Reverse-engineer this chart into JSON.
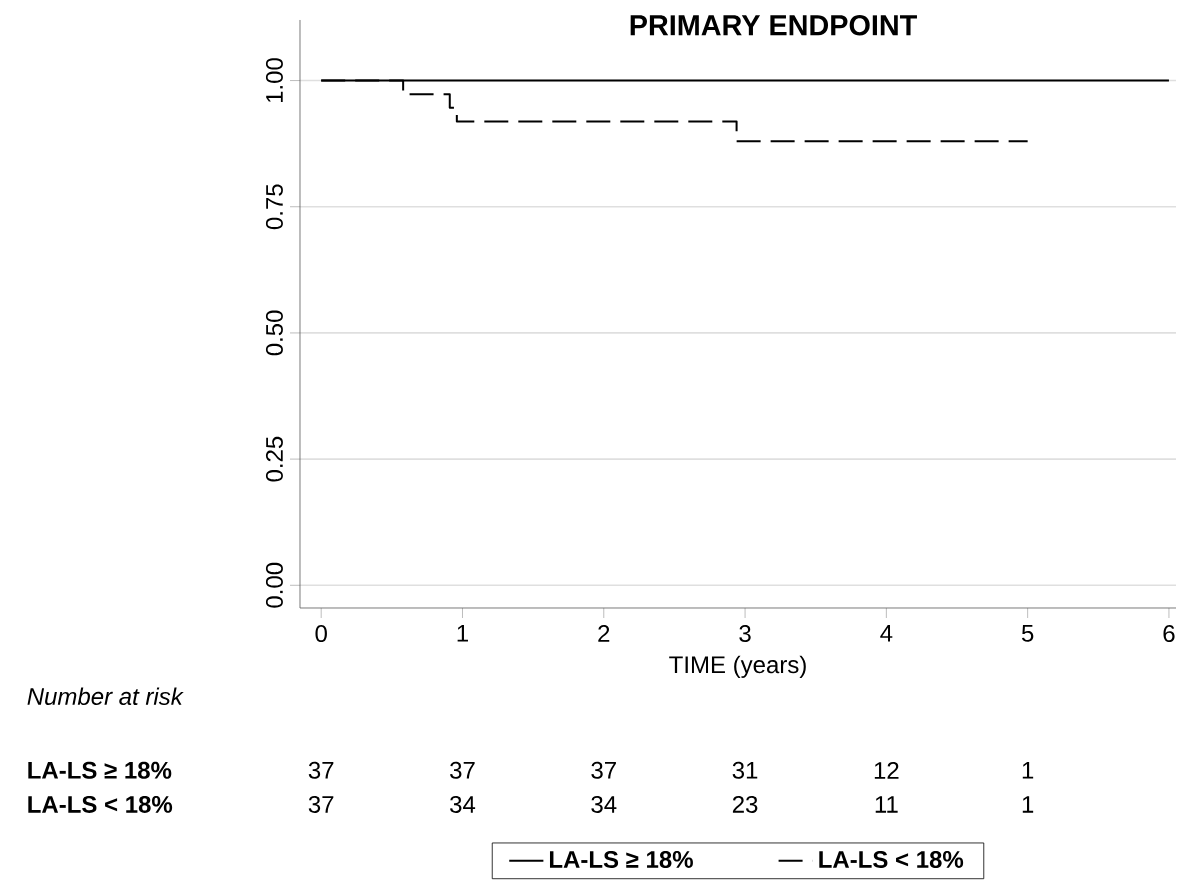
{
  "chart_data": {
    "type": "step",
    "title": "PRIMARY ENDPOINT",
    "xlabel": "TIME (years)",
    "xlim": [
      -0.15,
      6.05
    ],
    "ylim": [
      -0.045,
      1.12
    ],
    "xticks": [
      0,
      1,
      2,
      3,
      4,
      5,
      6
    ],
    "yticks": [
      {
        "value": 0,
        "label": "0.00"
      },
      {
        "value": 0.25,
        "label": "0.25"
      },
      {
        "value": 0.5,
        "label": "0.50"
      },
      {
        "value": 0.75,
        "label": "0.75"
      },
      {
        "value": 1,
        "label": "1.00"
      }
    ],
    "grid": "y",
    "legend": "bottom",
    "series": [
      {
        "name": "LA-LS ≥ 18%",
        "color": "#000000",
        "line_style": "solid",
        "x": [
          0,
          6
        ],
        "values": [
          1,
          1
        ]
      },
      {
        "name": "LA-LS < 18%",
        "color": "#000000",
        "line_style": "dashed",
        "x": [
          0,
          0.58,
          0.91,
          0.96,
          2.94,
          5.0
        ],
        "values": [
          1,
          0.973,
          0.946,
          0.919,
          0.88,
          0.88
        ]
      }
    ],
    "annotations": [
      "Number at risk",
      "LA-LS ≥ 18%",
      "37",
      "37",
      "37",
      "31",
      "12",
      "1",
      "LA-LS < 18%",
      "37",
      "34",
      "34",
      "23",
      "11",
      "1"
    ]
  }
}
